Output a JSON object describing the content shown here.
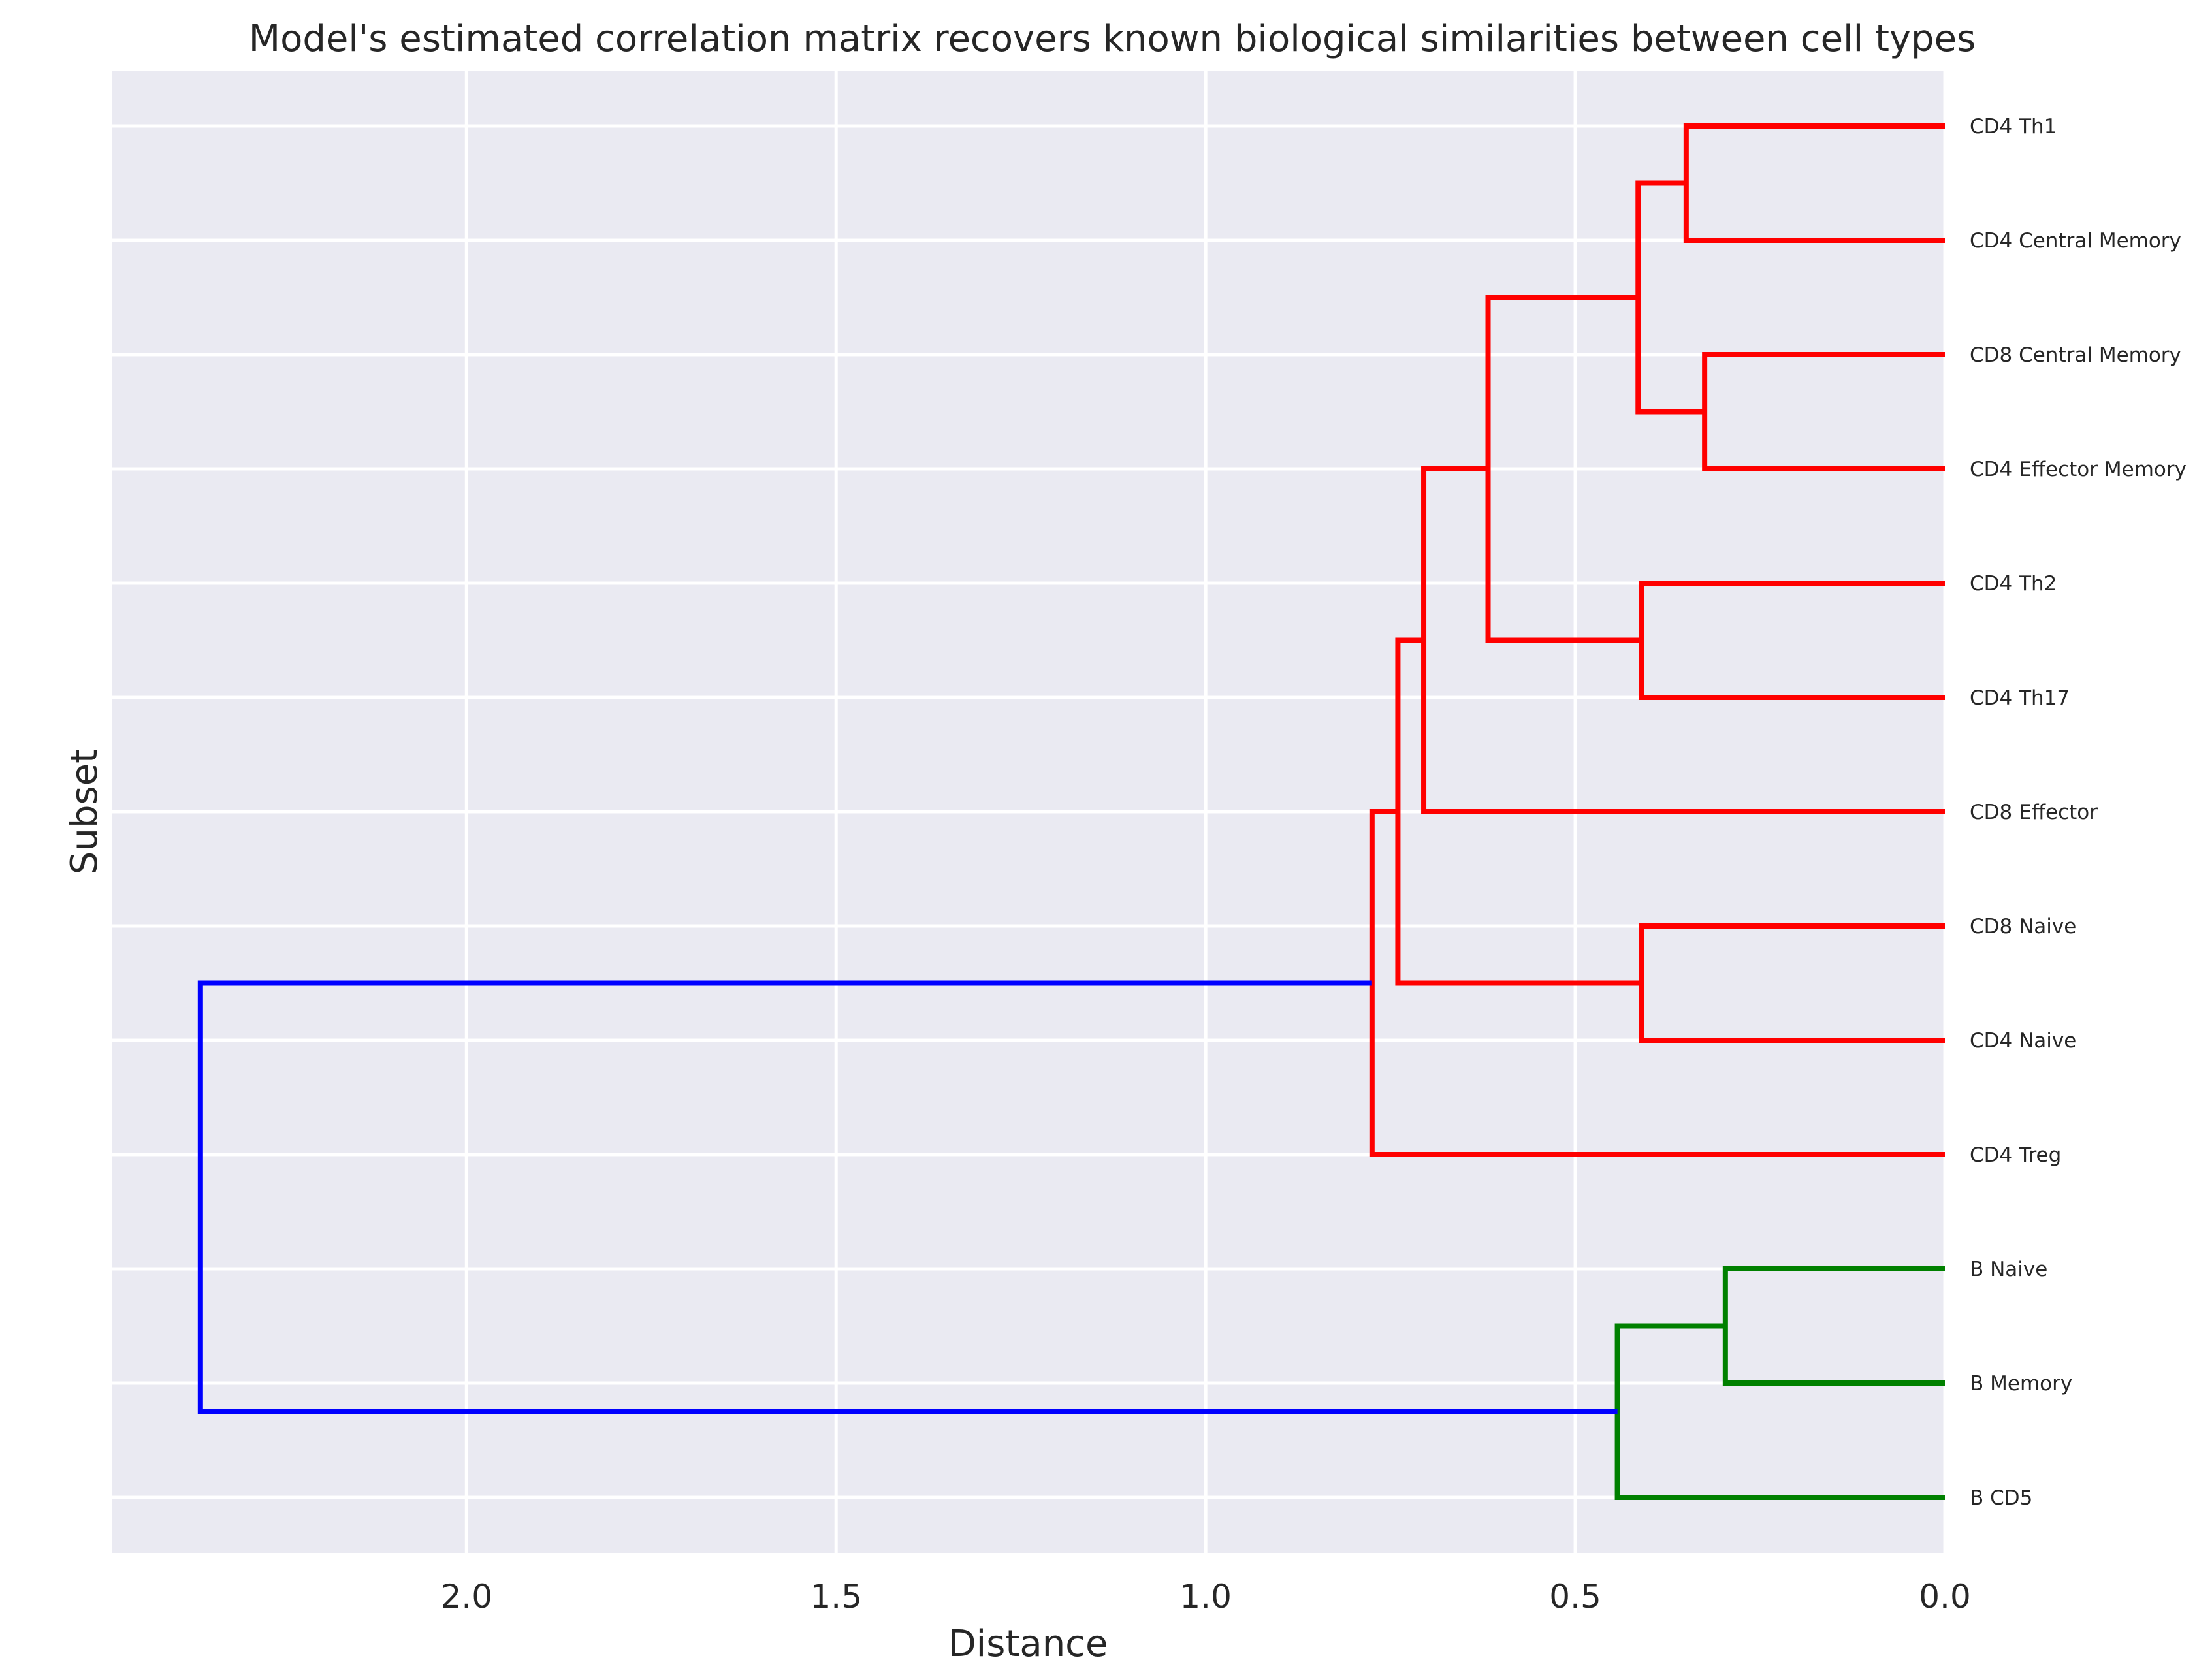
{
  "chart_data": {
    "type": "dendrogram",
    "orientation": "horizontal",
    "title": "Model's estimated correlation matrix recovers known biological similarities between cell types",
    "xlabel": "Distance",
    "ylabel": "Subset",
    "xlim": [
      2.48,
      0.0
    ],
    "x_inverted": true,
    "xticks": [
      2.0,
      1.5,
      1.0,
      0.5,
      0.0
    ],
    "xtick_labels": [
      "2.0",
      "1.5",
      "1.0",
      "0.5",
      "0.0"
    ],
    "grid": true,
    "leaves": [
      "CD4 Th1",
      "CD4 Central Memory",
      "CD8 Central Memory",
      "CD4 Effector Memory",
      "CD4 Th2",
      "CD4 Th17",
      "CD8 Effector",
      "CD8 Naive",
      "CD4 Naive",
      "CD4 Treg",
      "B Naive",
      "B Memory",
      "B CD5"
    ],
    "clusters": {
      "t_cells": "#ff0000",
      "b_cells": "#008000",
      "root": "#0000ff"
    },
    "merges": [
      {
        "id": "n1",
        "left": "CD4 Th1",
        "right": "CD4 Central Memory",
        "distance": 0.35,
        "color": "#ff0000"
      },
      {
        "id": "n2",
        "left": "CD8 Central Memory",
        "right": "CD4 Effector Memory",
        "distance": 0.325,
        "color": "#ff0000"
      },
      {
        "id": "n3",
        "left": "n1",
        "right": "n2",
        "distance": 0.415,
        "color": "#ff0000"
      },
      {
        "id": "n4",
        "left": "CD4 Th2",
        "right": "CD4 Th17",
        "distance": 0.41,
        "color": "#ff0000"
      },
      {
        "id": "n5",
        "left": "n3",
        "right": "n4",
        "distance": 0.618,
        "color": "#ff0000"
      },
      {
        "id": "n6",
        "left": "n5",
        "right": "CD8 Effector",
        "distance": 0.705,
        "color": "#ff0000"
      },
      {
        "id": "n7",
        "left": "CD8 Naive",
        "right": "CD4 Naive",
        "distance": 0.41,
        "color": "#ff0000"
      },
      {
        "id": "n8",
        "left": "n6",
        "right": "n7",
        "distance": 0.74,
        "color": "#ff0000"
      },
      {
        "id": "n9",
        "left": "n8",
        "right": "CD4 Treg",
        "distance": 0.775,
        "color": "#ff0000"
      },
      {
        "id": "n10",
        "left": "B Naive",
        "right": "B Memory",
        "distance": 0.297,
        "color": "#008000"
      },
      {
        "id": "n11",
        "left": "n10",
        "right": "B CD5",
        "distance": 0.443,
        "color": "#008000"
      },
      {
        "id": "n12",
        "left": "n9",
        "right": "n11",
        "distance": 2.36,
        "color": "#0000ff"
      }
    ],
    "colors": {
      "plot_background": "#eaeaf2",
      "grid": "#ffffff",
      "text": "#262626"
    }
  }
}
